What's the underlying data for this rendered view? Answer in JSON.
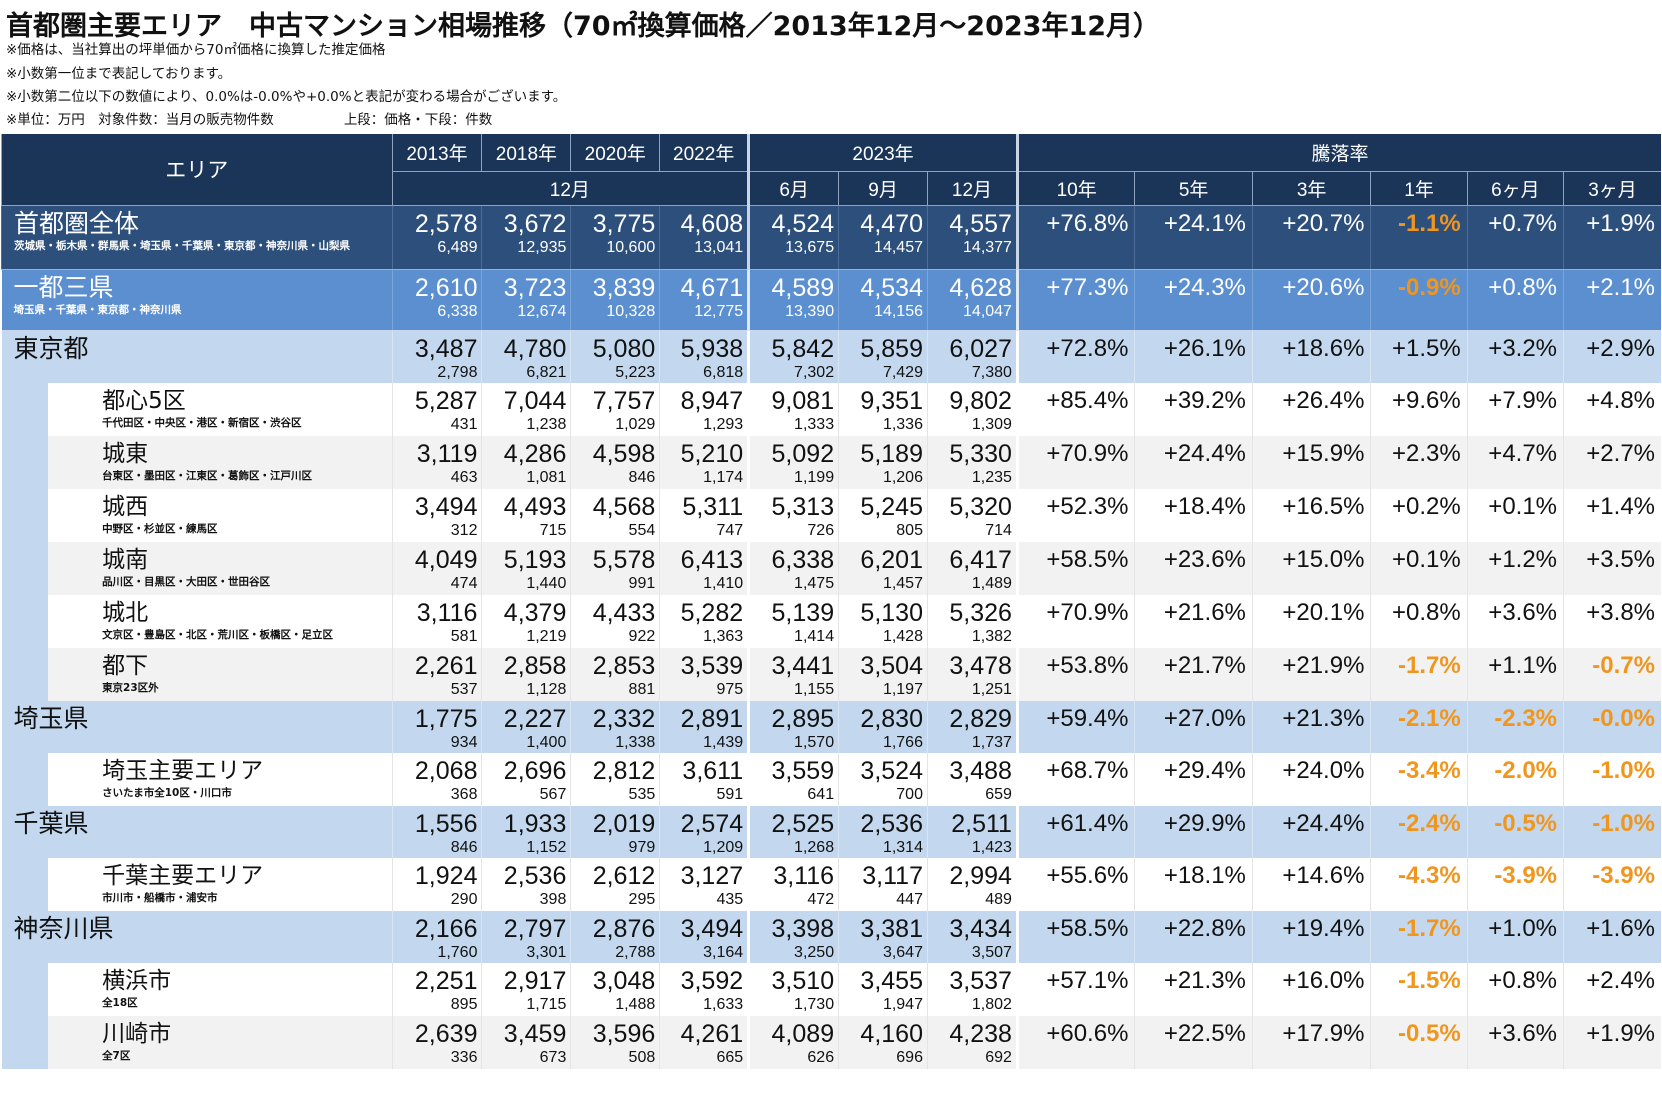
{
  "title": "首都圏主要エリア　中古マンション相場推移（70㎡換算価格／2013年12月～2023年12月）",
  "notes": [
    "※価格は、当社算出の坪単価から70㎡価格に換算した推定価格",
    "※小数第一位まで表記しております。",
    "※小数第二位以下の数値により、0.0%は-0.0%や+0.0%と表記が変わる場合がございます。",
    "※単位：万円　対象件数：当月の販売物件数"
  ],
  "note_extra": "上段：価格・下段：件数",
  "header": {
    "area": "エリア",
    "years": [
      "2013年",
      "2018年",
      "2020年",
      "2022年"
    ],
    "month_dec": "12月",
    "year_2023": "2023年",
    "months_2023": [
      "6月",
      "9月",
      "12月"
    ],
    "change": "騰落率",
    "change_periods": [
      "10年",
      "5年",
      "3年",
      "1年",
      "6ヶ月",
      "3ヶ月"
    ]
  },
  "colors": {
    "header_bg": "#1b3559",
    "all_bg": "#2d4f7c",
    "capital_bg": "#5b8fd0",
    "pref_bg": "#c3d8ee",
    "negative": "#f0961e"
  },
  "rows": [
    {
      "kind": "all",
      "name": "首都圏全体",
      "sub": "茨城県・栃木県・群馬県・埼玉県・千葉県・東京都・神奈川県・山梨県",
      "prices": [
        "2,578",
        "3,672",
        "3,775",
        "4,608",
        "4,524",
        "4,470",
        "4,557"
      ],
      "counts": [
        "6,489",
        "12,935",
        "10,600",
        "13,041",
        "13,675",
        "14,457",
        "14,377"
      ],
      "rates": [
        "+76.8%",
        "+24.1%",
        "+20.7%",
        "-1.1%",
        "+0.7%",
        "+1.9%"
      ]
    },
    {
      "kind": "cap",
      "name": "一都三県",
      "sub": "埼玉県・千葉県・東京都・神奈川県",
      "prices": [
        "2,610",
        "3,723",
        "3,839",
        "4,671",
        "4,589",
        "4,534",
        "4,628"
      ],
      "counts": [
        "6,338",
        "12,674",
        "10,328",
        "12,775",
        "13,390",
        "14,156",
        "14,047"
      ],
      "rates": [
        "+77.3%",
        "+24.3%",
        "+20.6%",
        "-0.9%",
        "+0.8%",
        "+2.1%"
      ]
    },
    {
      "kind": "pref",
      "name": "東京都",
      "sub": "",
      "prices": [
        "3,487",
        "4,780",
        "5,080",
        "5,938",
        "5,842",
        "5,859",
        "6,027"
      ],
      "counts": [
        "2,798",
        "6,821",
        "5,223",
        "6,818",
        "7,302",
        "7,429",
        "7,380"
      ],
      "rates": [
        "+72.8%",
        "+26.1%",
        "+18.6%",
        "+1.5%",
        "+3.2%",
        "+2.9%"
      ]
    },
    {
      "kind": "sub",
      "name": "都心5区",
      "sub": "千代田区・中央区・港区・新宿区・渋谷区",
      "prices": [
        "5,287",
        "7,044",
        "7,757",
        "8,947",
        "9,081",
        "9,351",
        "9,802"
      ],
      "counts": [
        "431",
        "1,238",
        "1,029",
        "1,293",
        "1,333",
        "1,336",
        "1,309"
      ],
      "rates": [
        "+85.4%",
        "+39.2%",
        "+26.4%",
        "+9.6%",
        "+7.9%",
        "+4.8%"
      ]
    },
    {
      "kind": "sub",
      "name": "城東",
      "sub": "台東区・墨田区・江東区・葛飾区・江戸川区",
      "prices": [
        "3,119",
        "4,286",
        "4,598",
        "5,210",
        "5,092",
        "5,189",
        "5,330"
      ],
      "counts": [
        "463",
        "1,081",
        "846",
        "1,174",
        "1,199",
        "1,206",
        "1,235"
      ],
      "rates": [
        "+70.9%",
        "+24.4%",
        "+15.9%",
        "+2.3%",
        "+4.7%",
        "+2.7%"
      ]
    },
    {
      "kind": "sub",
      "name": "城西",
      "sub": "中野区・杉並区・練馬区",
      "prices": [
        "3,494",
        "4,493",
        "4,568",
        "5,311",
        "5,313",
        "5,245",
        "5,320"
      ],
      "counts": [
        "312",
        "715",
        "554",
        "747",
        "726",
        "805",
        "714"
      ],
      "rates": [
        "+52.3%",
        "+18.4%",
        "+16.5%",
        "+0.2%",
        "+0.1%",
        "+1.4%"
      ]
    },
    {
      "kind": "sub",
      "name": "城南",
      "sub": "品川区・目黒区・大田区・世田谷区",
      "prices": [
        "4,049",
        "5,193",
        "5,578",
        "6,413",
        "6,338",
        "6,201",
        "6,417"
      ],
      "counts": [
        "474",
        "1,440",
        "991",
        "1,410",
        "1,475",
        "1,457",
        "1,489"
      ],
      "rates": [
        "+58.5%",
        "+23.6%",
        "+15.0%",
        "+0.1%",
        "+1.2%",
        "+3.5%"
      ]
    },
    {
      "kind": "sub",
      "name": "城北",
      "sub": "文京区・豊島区・北区・荒川区・板橋区・足立区",
      "prices": [
        "3,116",
        "4,379",
        "4,433",
        "5,282",
        "5,139",
        "5,130",
        "5,326"
      ],
      "counts": [
        "581",
        "1,219",
        "922",
        "1,363",
        "1,414",
        "1,428",
        "1,382"
      ],
      "rates": [
        "+70.9%",
        "+21.6%",
        "+20.1%",
        "+0.8%",
        "+3.6%",
        "+3.8%"
      ]
    },
    {
      "kind": "sub",
      "name": "都下",
      "sub": "東京23区外",
      "prices": [
        "2,261",
        "2,858",
        "2,853",
        "3,539",
        "3,441",
        "3,504",
        "3,478"
      ],
      "counts": [
        "537",
        "1,128",
        "881",
        "975",
        "1,155",
        "1,197",
        "1,251"
      ],
      "rates": [
        "+53.8%",
        "+21.7%",
        "+21.9%",
        "-1.7%",
        "+1.1%",
        "-0.7%"
      ]
    },
    {
      "kind": "pref",
      "name": "埼玉県",
      "sub": "",
      "prices": [
        "1,775",
        "2,227",
        "2,332",
        "2,891",
        "2,895",
        "2,830",
        "2,829"
      ],
      "counts": [
        "934",
        "1,400",
        "1,338",
        "1,439",
        "1,570",
        "1,766",
        "1,737"
      ],
      "rates": [
        "+59.4%",
        "+27.0%",
        "+21.3%",
        "-2.1%",
        "-2.3%",
        "-0.0%"
      ]
    },
    {
      "kind": "sub",
      "name": "埼玉主要エリア",
      "sub": "さいたま市全10区・川口市",
      "prices": [
        "2,068",
        "2,696",
        "2,812",
        "3,611",
        "3,559",
        "3,524",
        "3,488"
      ],
      "counts": [
        "368",
        "567",
        "535",
        "591",
        "641",
        "700",
        "659"
      ],
      "rates": [
        "+68.7%",
        "+29.4%",
        "+24.0%",
        "-3.4%",
        "-2.0%",
        "-1.0%"
      ]
    },
    {
      "kind": "pref",
      "name": "千葉県",
      "sub": "",
      "prices": [
        "1,556",
        "1,933",
        "2,019",
        "2,574",
        "2,525",
        "2,536",
        "2,511"
      ],
      "counts": [
        "846",
        "1,152",
        "979",
        "1,209",
        "1,268",
        "1,314",
        "1,423"
      ],
      "rates": [
        "+61.4%",
        "+29.9%",
        "+24.4%",
        "-2.4%",
        "-0.5%",
        "-1.0%"
      ]
    },
    {
      "kind": "sub",
      "name": "千葉主要エリア",
      "sub": "市川市・船橋市・浦安市",
      "prices": [
        "1,924",
        "2,536",
        "2,612",
        "3,127",
        "3,116",
        "3,117",
        "2,994"
      ],
      "counts": [
        "290",
        "398",
        "295",
        "435",
        "472",
        "447",
        "489"
      ],
      "rates": [
        "+55.6%",
        "+18.1%",
        "+14.6%",
        "-4.3%",
        "-3.9%",
        "-3.9%"
      ]
    },
    {
      "kind": "pref",
      "name": "神奈川県",
      "sub": "",
      "prices": [
        "2,166",
        "2,797",
        "2,876",
        "3,494",
        "3,398",
        "3,381",
        "3,434"
      ],
      "counts": [
        "1,760",
        "3,301",
        "2,788",
        "3,164",
        "3,250",
        "3,647",
        "3,507"
      ],
      "rates": [
        "+58.5%",
        "+22.8%",
        "+19.4%",
        "-1.7%",
        "+1.0%",
        "+1.6%"
      ]
    },
    {
      "kind": "sub",
      "name": "横浜市",
      "sub": "全18区",
      "prices": [
        "2,251",
        "2,917",
        "3,048",
        "3,592",
        "3,510",
        "3,455",
        "3,537"
      ],
      "counts": [
        "895",
        "1,715",
        "1,488",
        "1,633",
        "1,730",
        "1,947",
        "1,802"
      ],
      "rates": [
        "+57.1%",
        "+21.3%",
        "+16.0%",
        "-1.5%",
        "+0.8%",
        "+2.4%"
      ]
    },
    {
      "kind": "sub",
      "name": "川崎市",
      "sub": "全7区",
      "prices": [
        "2,639",
        "3,459",
        "3,596",
        "4,261",
        "4,089",
        "4,160",
        "4,238"
      ],
      "counts": [
        "336",
        "673",
        "508",
        "665",
        "626",
        "696",
        "692"
      ],
      "rates": [
        "+60.6%",
        "+22.5%",
        "+17.9%",
        "-0.5%",
        "+3.6%",
        "+1.9%"
      ]
    }
  ]
}
